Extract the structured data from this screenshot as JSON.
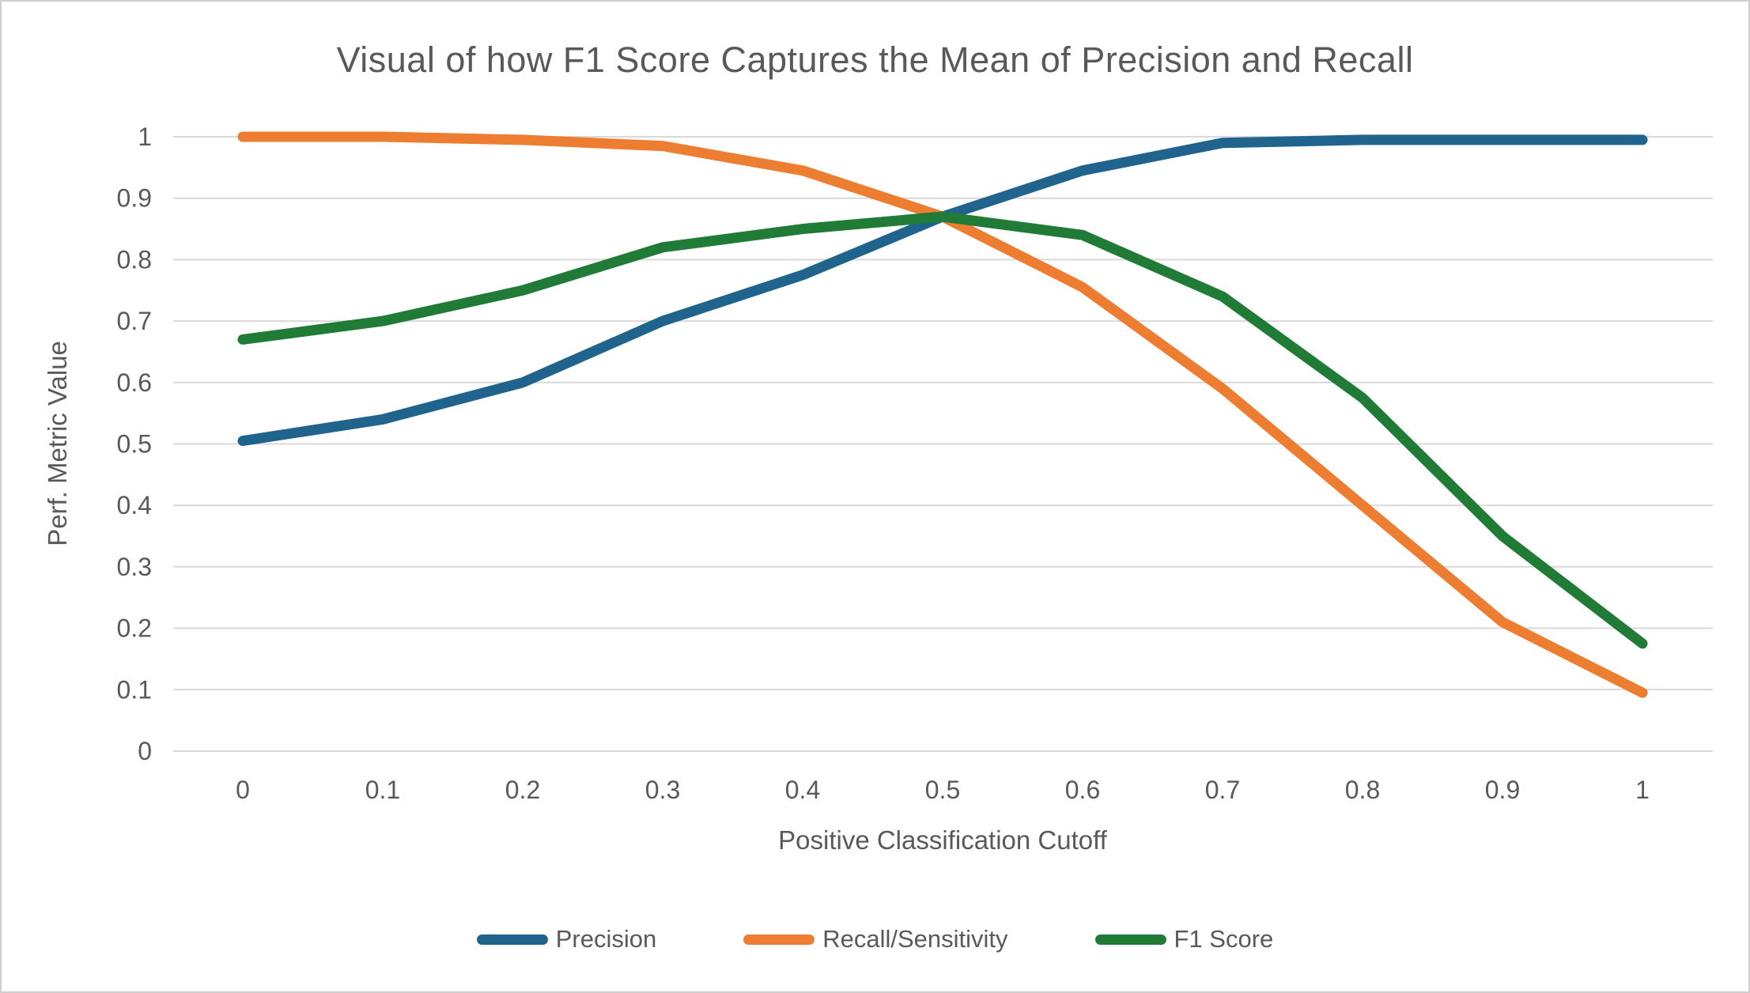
{
  "colors": {
    "text": "#595959",
    "gridline": "#d9d9d9",
    "axis_line": "#d9d9d9",
    "background": "#ffffff",
    "border": "#cfcfcf",
    "precision": "#20638C",
    "recall": "#ED7D31",
    "f1": "#1F7B35"
  },
  "chart_data": {
    "type": "line",
    "title": "Visual of how F1 Score Captures the Mean of Precision and Recall",
    "xlabel": "Positive Classification Cutoff",
    "ylabel": "Perf. Metric Value",
    "x": [
      0,
      0.1,
      0.2,
      0.3,
      0.4,
      0.5,
      0.6,
      0.7,
      0.8,
      0.9,
      1
    ],
    "x_tick_labels": [
      "0",
      "0.1",
      "0.2",
      "0.3",
      "0.4",
      "0.5",
      "0.6",
      "0.7",
      "0.8",
      "0.9",
      "1"
    ],
    "y_ticks": [
      0,
      0.1,
      0.2,
      0.3,
      0.4,
      0.5,
      0.6,
      0.7,
      0.8,
      0.9,
      1
    ],
    "y_tick_labels": [
      "0",
      "0.1",
      "0.2",
      "0.3",
      "0.4",
      "0.5",
      "0.6",
      "0.7",
      "0.8",
      "0.9",
      "1"
    ],
    "xlim": [
      0,
      1
    ],
    "ylim": [
      0,
      1
    ],
    "grid": "horizontal",
    "legend_position": "bottom",
    "series": [
      {
        "name": "Precision",
        "color_key": "precision",
        "values": [
          0.505,
          0.54,
          0.6,
          0.7,
          0.775,
          0.87,
          0.945,
          0.99,
          0.995,
          0.995,
          0.995
        ]
      },
      {
        "name": "Recall/Sensitivity",
        "color_key": "recall",
        "values": [
          1.0,
          1.0,
          0.995,
          0.985,
          0.945,
          0.87,
          0.755,
          0.59,
          0.4,
          0.21,
          0.095
        ]
      },
      {
        "name": "F1 Score",
        "color_key": "f1",
        "values": [
          0.67,
          0.7,
          0.75,
          0.82,
          0.85,
          0.87,
          0.84,
          0.74,
          0.575,
          0.35,
          0.175
        ]
      }
    ]
  }
}
